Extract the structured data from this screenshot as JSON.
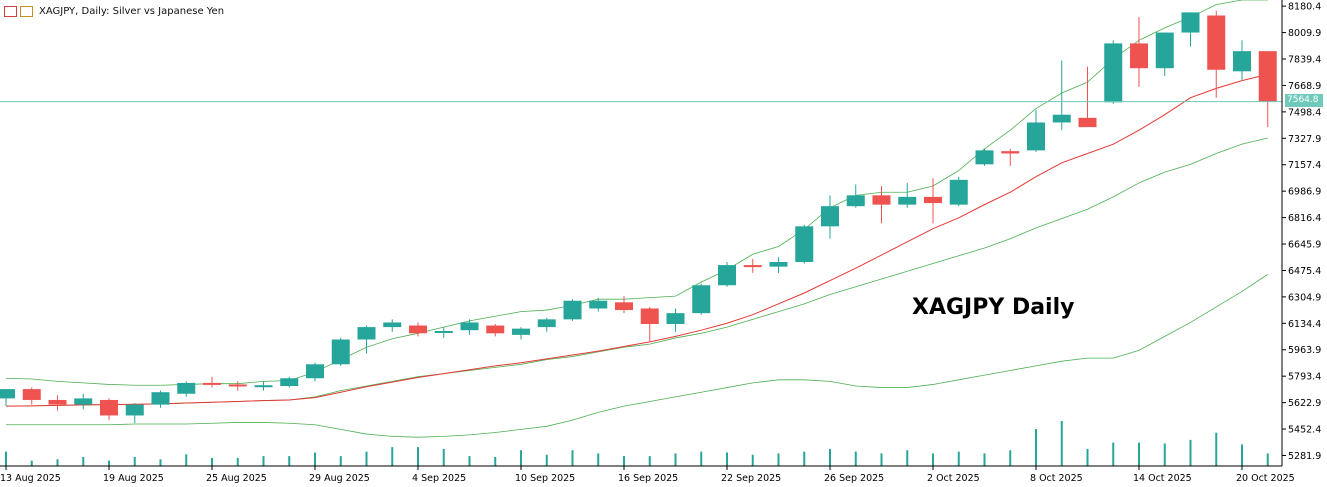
{
  "header": {
    "symbol_line": "XAGJPY, Daily:  Silver vs Japanese Yen",
    "icon_a": "chart-window-icon",
    "icon_b": "indicator-window-icon"
  },
  "watermark": "XAGJPY Daily",
  "current_price_label": "7564.8",
  "colors": {
    "bull": "#26a69a",
    "bear": "#ef5350",
    "ma": "#e53935",
    "bands": "#4caf50",
    "price_line": "#6fcabb",
    "volume": "#26a69a"
  },
  "chart_data": {
    "type": "candlestick",
    "title": "",
    "y_ticks": [
      "8180.4",
      "8009.9",
      "7839.4",
      "7668.9",
      "7498.4",
      "7327.9",
      "7157.4",
      "6986.9",
      "6816.4",
      "6645.9",
      "6475.4",
      "6304.9",
      "6134.4",
      "5963.9",
      "5793.4",
      "5622.9",
      "5452.4",
      "5281.9"
    ],
    "ylim": [
      5214,
      8220
    ],
    "x_ticks": [
      {
        "i": 0,
        "label": "13 Aug 2025"
      },
      {
        "i": 4,
        "label": "19 Aug 2025"
      },
      {
        "i": 8,
        "label": "25 Aug 2025"
      },
      {
        "i": 12,
        "label": "29 Aug 2025"
      },
      {
        "i": 16,
        "label": "4 Sep 2025"
      },
      {
        "i": 20,
        "label": "10 Sep 2025"
      },
      {
        "i": 24,
        "label": "16 Sep 2025"
      },
      {
        "i": 28,
        "label": "22 Sep 2025"
      },
      {
        "i": 32,
        "label": "26 Sep 2025"
      },
      {
        "i": 36,
        "label": "2 Oct 2025"
      },
      {
        "i": 40,
        "label": "8 Oct 2025"
      },
      {
        "i": 44,
        "label": "14 Oct 2025"
      },
      {
        "i": 48,
        "label": "20 Oct 2025"
      }
    ],
    "current_price": 7564.8,
    "candles": [
      {
        "o": 5650,
        "h": 5700,
        "l": 5600,
        "c": 5710
      },
      {
        "o": 5710,
        "h": 5720,
        "l": 5610,
        "c": 5640
      },
      {
        "o": 5640,
        "h": 5670,
        "l": 5570,
        "c": 5610
      },
      {
        "o": 5610,
        "h": 5680,
        "l": 5580,
        "c": 5650
      },
      {
        "o": 5640,
        "h": 5650,
        "l": 5510,
        "c": 5540
      },
      {
        "o": 5540,
        "h": 5620,
        "l": 5490,
        "c": 5610
      },
      {
        "o": 5610,
        "h": 5700,
        "l": 5590,
        "c": 5690
      },
      {
        "o": 5680,
        "h": 5760,
        "l": 5660,
        "c": 5750
      },
      {
        "o": 5750,
        "h": 5790,
        "l": 5720,
        "c": 5740
      },
      {
        "o": 5740,
        "h": 5760,
        "l": 5700,
        "c": 5730
      },
      {
        "o": 5725,
        "h": 5760,
        "l": 5700,
        "c": 5735
      },
      {
        "o": 5730,
        "h": 5790,
        "l": 5720,
        "c": 5780
      },
      {
        "o": 5780,
        "h": 5880,
        "l": 5760,
        "c": 5870
      },
      {
        "o": 5870,
        "h": 6040,
        "l": 5860,
        "c": 6030
      },
      {
        "o": 6030,
        "h": 6120,
        "l": 5940,
        "c": 6110
      },
      {
        "o": 6110,
        "h": 6160,
        "l": 6080,
        "c": 6140
      },
      {
        "o": 6120,
        "h": 6140,
        "l": 6050,
        "c": 6070
      },
      {
        "o": 6080,
        "h": 6110,
        "l": 6040,
        "c": 6085
      },
      {
        "o": 6090,
        "h": 6160,
        "l": 6060,
        "c": 6140
      },
      {
        "o": 6120,
        "h": 6130,
        "l": 6050,
        "c": 6070
      },
      {
        "o": 6060,
        "h": 6110,
        "l": 6030,
        "c": 6100
      },
      {
        "o": 6110,
        "h": 6170,
        "l": 6080,
        "c": 6160
      },
      {
        "o": 6160,
        "h": 6290,
        "l": 6150,
        "c": 6280
      },
      {
        "o": 6230,
        "h": 6300,
        "l": 6210,
        "c": 6280
      },
      {
        "o": 6270,
        "h": 6310,
        "l": 6200,
        "c": 6220
      },
      {
        "o": 6230,
        "h": 6240,
        "l": 6020,
        "c": 6130
      },
      {
        "o": 6130,
        "h": 6230,
        "l": 6080,
        "c": 6200
      },
      {
        "o": 6200,
        "h": 6390,
        "l": 6190,
        "c": 6380
      },
      {
        "o": 6380,
        "h": 6530,
        "l": 6370,
        "c": 6510
      },
      {
        "o": 6510,
        "h": 6550,
        "l": 6460,
        "c": 6500
      },
      {
        "o": 6500,
        "h": 6560,
        "l": 6460,
        "c": 6530
      },
      {
        "o": 6530,
        "h": 6770,
        "l": 6520,
        "c": 6760
      },
      {
        "o": 6760,
        "h": 6960,
        "l": 6680,
        "c": 6890
      },
      {
        "o": 6890,
        "h": 7030,
        "l": 6880,
        "c": 6960
      },
      {
        "o": 6960,
        "h": 7020,
        "l": 6780,
        "c": 6900
      },
      {
        "o": 6900,
        "h": 7040,
        "l": 6880,
        "c": 6950
      },
      {
        "o": 6950,
        "h": 7070,
        "l": 6780,
        "c": 6910
      },
      {
        "o": 6900,
        "h": 7080,
        "l": 6890,
        "c": 7060
      },
      {
        "o": 7160,
        "h": 7260,
        "l": 7150,
        "c": 7250
      },
      {
        "o": 7245,
        "h": 7260,
        "l": 7150,
        "c": 7230
      },
      {
        "o": 7250,
        "h": 7510,
        "l": 7240,
        "c": 7430
      },
      {
        "o": 7430,
        "h": 7830,
        "l": 7380,
        "c": 7480
      },
      {
        "o": 7460,
        "h": 7790,
        "l": 7400,
        "c": 7400
      },
      {
        "o": 7560,
        "h": 7960,
        "l": 7550,
        "c": 7940
      },
      {
        "o": 7940,
        "h": 8110,
        "l": 7660,
        "c": 7780
      },
      {
        "o": 7780,
        "h": 8000,
        "l": 7730,
        "c": 8010
      },
      {
        "o": 8010,
        "h": 8140,
        "l": 7920,
        "c": 8140
      },
      {
        "o": 8120,
        "h": 8150,
        "l": 7590,
        "c": 7770
      },
      {
        "o": 7760,
        "h": 7960,
        "l": 7700,
        "c": 7890
      },
      {
        "o": 7890,
        "h": 7890,
        "l": 7400,
        "c": 7565
      }
    ],
    "ma": [
      5600,
      5602,
      5605,
      5608,
      5610,
      5612,
      5615,
      5620,
      5625,
      5630,
      5636,
      5640,
      5655,
      5690,
      5725,
      5755,
      5785,
      5810,
      5835,
      5860,
      5880,
      5905,
      5930,
      5955,
      5985,
      6015,
      6050,
      6090,
      6135,
      6190,
      6260,
      6330,
      6410,
      6490,
      6575,
      6660,
      6745,
      6815,
      6900,
      6980,
      7080,
      7170,
      7230,
      7290,
      7380,
      7480,
      7590,
      7650,
      7700,
      7740
    ],
    "band_upper": [
      5780,
      5775,
      5760,
      5750,
      5740,
      5735,
      5735,
      5740,
      5745,
      5745,
      5760,
      5765,
      5820,
      5900,
      5980,
      6035,
      6070,
      6110,
      6150,
      6180,
      6210,
      6220,
      6250,
      6290,
      6290,
      6300,
      6310,
      6400,
      6480,
      6580,
      6630,
      6740,
      6880,
      6960,
      6980,
      6980,
      7020,
      7120,
      7260,
      7380,
      7520,
      7620,
      7690,
      7840,
      7960,
      8040,
      8110,
      8190,
      8220,
      8220
    ],
    "band_middle": [
      5600,
      5602,
      5605,
      5608,
      5610,
      5612,
      5615,
      5620,
      5625,
      5630,
      5636,
      5640,
      5660,
      5700,
      5730,
      5760,
      5790,
      5810,
      5830,
      5850,
      5870,
      5900,
      5920,
      5950,
      5980,
      6000,
      6040,
      6070,
      6110,
      6160,
      6210,
      6260,
      6320,
      6370,
      6420,
      6470,
      6520,
      6570,
      6620,
      6680,
      6750,
      6810,
      6870,
      6950,
      7040,
      7110,
      7160,
      7230,
      7290,
      7330
    ],
    "band_lower": [
      5480,
      5480,
      5480,
      5480,
      5480,
      5485,
      5485,
      5485,
      5490,
      5495,
      5495,
      5490,
      5480,
      5450,
      5420,
      5405,
      5400,
      5405,
      5415,
      5430,
      5450,
      5470,
      5510,
      5560,
      5600,
      5630,
      5660,
      5690,
      5720,
      5750,
      5770,
      5770,
      5760,
      5730,
      5720,
      5720,
      5740,
      5770,
      5800,
      5830,
      5860,
      5890,
      5910,
      5910,
      5960,
      6050,
      6140,
      6240,
      6340,
      6450
    ],
    "volume": [
      0.32,
      0.12,
      0.15,
      0.2,
      0.12,
      0.2,
      0.15,
      0.26,
      0.18,
      0.18,
      0.22,
      0.22,
      0.3,
      0.22,
      0.32,
      0.42,
      0.42,
      0.38,
      0.22,
      0.2,
      0.35,
      0.25,
      0.35,
      0.28,
      0.22,
      0.22,
      0.28,
      0.32,
      0.3,
      0.25,
      0.28,
      0.32,
      0.38,
      0.32,
      0.28,
      0.35,
      0.28,
      0.32,
      0.28,
      0.35,
      0.82,
      1.0,
      0.38,
      0.52,
      0.52,
      0.5,
      0.58,
      0.74,
      0.48,
      0.28
    ]
  }
}
